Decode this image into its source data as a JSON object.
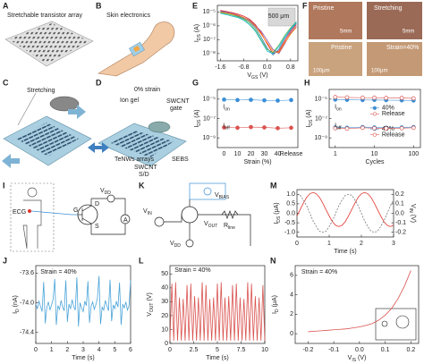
{
  "panels": {
    "A": {
      "letter": "A",
      "title": "Stretchable transistor array"
    },
    "B": {
      "letter": "B",
      "title": "Skin electronics"
    },
    "C": {
      "letter": "C",
      "title": "Stretching"
    },
    "D": {
      "letter": "D",
      "strain": "0% strain",
      "ion_gel": "Ion gel",
      "swcnt_gate": {
        "top": "SWCNT",
        "bottom": "gate"
      },
      "tenws": "TeNWs arrays",
      "swcnt_sd": {
        "top": "SWCNT",
        "bottom": "S/D"
      },
      "sebs": "SEBS"
    },
    "F": {
      "letter": "F",
      "pristine_top": "Pristine",
      "stretching": "Stretching",
      "scale_1": "5mm",
      "scale_2": "5mm",
      "pristine_bottom": "Pristine",
      "strain": "Strain=40%",
      "scale_3": "100μm",
      "scale_4": "100μm"
    },
    "I": {
      "letter": "I",
      "ecg": "ECG",
      "gate": "G",
      "drain": "D",
      "source": "S",
      "vdd": [
        "V",
        "DD"
      ],
      "ammeter": "A"
    },
    "K": {
      "letter": "K",
      "vbias": [
        "V",
        "BIAS"
      ],
      "vin": [
        "V",
        "IN"
      ],
      "vout": [
        "V",
        "OUT"
      ],
      "rline": [
        "R",
        "line"
      ],
      "vdd": [
        "V",
        "DD"
      ]
    }
  },
  "chart_data": [
    {
      "type": "line",
      "letter": "E",
      "ylog": true,
      "x": [
        -1.6,
        -1.4,
        -1.2,
        -1.0,
        -0.8,
        -0.6,
        -0.4,
        -0.2,
        0,
        0.2,
        0.4,
        0.6,
        0.8,
        1.0
      ],
      "xlim": [
        -1.7,
        1.05
      ],
      "xticks": [
        -1.6,
        -0.8,
        {
          "value": 0,
          "label": "0.0"
        },
        0.8
      ],
      "ylim": [
        3e-09,
        3e-05
      ],
      "yticks": [
        {
          "value": 1e-05,
          "label": "10⁻⁵"
        },
        {
          "value": 1e-06,
          "label": "10⁻⁶"
        },
        {
          "value": 1e-07,
          "label": "10⁻⁷"
        },
        {
          "value": 1e-08,
          "label": "10⁻⁸"
        }
      ],
      "xlabel": [
        "V",
        "GS",
        " (V)"
      ],
      "ylabel": [
        "I",
        "DS",
        " (A)"
      ],
      "annotations": [
        "500 μm"
      ],
      "series": [
        {
          "color": "#e41a1c",
          "values": [
            1.3e-05,
            1.1e-05,
            9e-06,
            7e-06,
            5e-06,
            3e-06,
            1.2e-06,
            3e-07,
            5e-08,
            1e-08,
            1.5e-08,
            8e-08,
            4e-07,
            1.2e-06
          ]
        },
        {
          "color": "#377eb8",
          "values": [
            1.1e-05,
            9e-06,
            7e-06,
            5e-06,
            3.5e-06,
            2e-06,
            7e-07,
            1.5e-07,
            2.5e-08,
            8e-09,
            2e-08,
            1.2e-07,
            5e-07,
            1.5e-06
          ]
        },
        {
          "color": "#4daf4a",
          "values": [
            9e-06,
            7.5e-06,
            6e-06,
            4.5e-06,
            3e-06,
            1.5e-06,
            5e-07,
            1e-07,
            2e-08,
            1.2e-08,
            4e-08,
            2e-07,
            7e-07,
            2e-06
          ]
        },
        {
          "color": "#984ea3",
          "values": [
            1.2e-05,
            1e-05,
            8e-06,
            6e-06,
            4e-06,
            2.5e-06,
            1e-06,
            4e-07,
            9e-08,
            2e-08,
            1e-08,
            5e-08,
            3e-07,
            9e-07
          ]
        },
        {
          "color": "#ff7f00",
          "values": [
            1e-05,
            8.5e-06,
            7e-06,
            5.5e-06,
            4e-06,
            2.2e-06,
            9e-07,
            2.5e-07,
            6e-08,
            1.5e-08,
            1.2e-08,
            6e-08,
            2.5e-07,
            8e-07
          ]
        },
        {
          "color": "#17becf",
          "values": [
            8e-06,
            6.5e-06,
            5e-06,
            4e-06,
            2.5e-06,
            1.2e-06,
            4e-07,
            8e-08,
            1.5e-08,
            1e-08,
            3e-08,
            1.5e-07,
            6e-07,
            1.8e-06
          ]
        }
      ]
    },
    {
      "type": "line",
      "letter": "G",
      "ylog": true,
      "categories": [
        "0",
        "10",
        "20",
        "30",
        "40",
        "Release"
      ],
      "ylim": [
        1e-10,
        0.0001
      ],
      "yticks": [
        {
          "value": 1e-05,
          "label": "10⁻⁵"
        },
        {
          "value": 1e-07,
          "label": "10⁻⁷"
        },
        {
          "value": 1e-09,
          "label": "10⁻⁹"
        }
      ],
      "xlabel": "Strain (%)",
      "ylabel": [
        "I",
        "DS",
        " (A)"
      ],
      "annotations": [
        [
          "I",
          "on"
        ],
        [
          "I",
          "off"
        ]
      ],
      "series": [
        {
          "color": "#3b8fd6",
          "marker": "circle",
          "values": [
            9e-06,
            8e-06,
            8.5e-06,
            7.5e-06,
            7e-06,
            8e-06
          ]
        },
        {
          "color": "#d9534f",
          "marker": "circle",
          "values": [
            1.2e-08,
            1.1e-08,
            1.3e-08,
            1.2e-08,
            1e-08,
            1.1e-08
          ]
        }
      ]
    },
    {
      "type": "line",
      "letter": "H",
      "ylog": true,
      "xlog": true,
      "x": [
        1,
        2,
        5,
        10,
        20,
        50,
        100
      ],
      "xlim": [
        0.7,
        150
      ],
      "xticks": [
        1,
        10,
        100
      ],
      "ylim": [
        1e-10,
        0.0001
      ],
      "yticks": [
        {
          "value": 1e-05,
          "label": "10⁻⁵"
        },
        {
          "value": 1e-07,
          "label": "10⁻⁷"
        },
        {
          "value": 1e-09,
          "label": "10⁻⁹"
        }
      ],
      "xlabel": "Cycles",
      "ylabel": [
        "I",
        "DS",
        " (A)"
      ],
      "annotations": [
        [
          "I",
          "on"
        ],
        [
          "I",
          "off"
        ]
      ],
      "series": [
        {
          "name": "40%",
          "color": "#3b8fd6",
          "marker": "circle",
          "values": [
            9e-06,
            8.5e-06,
            8e-06,
            8.2e-06,
            7.8e-06,
            7.5e-06,
            7.2e-06
          ]
        },
        {
          "name": "Release",
          "color": "#d9534f",
          "marker": "ring",
          "values": [
            1.6e-05,
            1.5e-05,
            1.4e-05,
            1.4e-05,
            1.3e-05,
            1.3e-05,
            1.2e-05
          ]
        },
        {
          "name": "40%",
          "color": "#3b8fd6",
          "marker": "circle",
          "values": [
            1.2e-08,
            1.1e-08,
            1.3e-08,
            1.2e-08,
            1.1e-08,
            1.2e-08,
            1.3e-08
          ]
        },
        {
          "name": "Release",
          "color": "#d9534f",
          "marker": "ring",
          "values": [
            1e-08,
            9e-09,
            1.1e-08,
            1e-08,
            9.5e-09,
            1e-08,
            1.1e-08
          ]
        }
      ]
    },
    {
      "type": "line",
      "letter": "M",
      "x": [
        0,
        0.1,
        0.2,
        0.3,
        0.4,
        0.5,
        0.6,
        0.7,
        0.8,
        0.9,
        1.0,
        1.1,
        1.2,
        1.3,
        1.4,
        1.5,
        1.6,
        1.7,
        1.8,
        1.9,
        2.0,
        2.1,
        2.2,
        2.3,
        2.4,
        2.5,
        2.6,
        2.7,
        2.8,
        2.9,
        3.0
      ],
      "xlim": [
        0,
        3
      ],
      "xticks": [
        0,
        1,
        2,
        3
      ],
      "ylim": [
        -1.25,
        1.25
      ],
      "yticks": [
        {
          "value": 1,
          "label": "1.0"
        },
        0.5,
        {
          "value": 0,
          "label": "0.0"
        },
        -0.5,
        {
          "value": -1,
          "label": "-1.0"
        }
      ],
      "y2lim": [
        -0.25,
        0.25
      ],
      "y2ticks": [
        0.2,
        0.1,
        {
          "value": 0,
          "label": "0.0"
        },
        -0.1,
        -0.2
      ],
      "xlabel": "Time (s)",
      "ylabel": [
        "I",
        "DS",
        " (μA)"
      ],
      "y2label": [
        "V",
        "IN",
        " (V)"
      ],
      "series": [
        {
          "color": "#e0322b",
          "values": [
            -0.14,
            0.2,
            0.54,
            0.84,
            1.03,
            1.1,
            1.03,
            0.84,
            0.54,
            0.2,
            -0.14,
            -0.44,
            -0.63,
            -0.7,
            -0.63,
            -0.44,
            -0.14,
            0.2,
            0.54,
            0.84,
            1.03,
            1.1,
            1.03,
            0.84,
            0.54,
            0.2,
            -0.14,
            -0.44,
            -0.63,
            -0.7,
            -0.63
          ]
        },
        {
          "color": "#777777",
          "dash": true,
          "axis": "y2",
          "values": [
            0.2,
            0.19,
            0.14,
            0.08,
            0,
            -0.08,
            -0.14,
            -0.19,
            -0.2,
            -0.19,
            -0.14,
            -0.08,
            0,
            0.08,
            0.14,
            0.19,
            0.2,
            0.19,
            0.14,
            0.08,
            0,
            -0.08,
            -0.14,
            -0.19,
            -0.2,
            -0.19,
            -0.14,
            -0.08,
            0,
            0.08,
            0.14
          ]
        }
      ]
    },
    {
      "type": "line",
      "letter": "J",
      "x": [
        0,
        0.1,
        0.2,
        0.3,
        0.4,
        0.5,
        0.6,
        0.7,
        0.8,
        0.9,
        1,
        1.1,
        1.2,
        1.3,
        1.4,
        1.5,
        1.6,
        1.7,
        1.8,
        1.9,
        2,
        2.1,
        2.2,
        2.3,
        2.4,
        2.5,
        2.6,
        2.7,
        2.8,
        2.9,
        3,
        3.1,
        3.2,
        3.3,
        3.4,
        3.5,
        3.6,
        3.7,
        3.8,
        3.9,
        4,
        4.1,
        4.2,
        4.3,
        4.4,
        4.5,
        4.6,
        4.7,
        4.8,
        4.9,
        5,
        5.1,
        5.2,
        5.3,
        5.4,
        5.5,
        5.6,
        5.7,
        5.8,
        5.9,
        6
      ],
      "xlim": [
        0,
        6
      ],
      "xticks": [
        0,
        1,
        2,
        3,
        4,
        5,
        6
      ],
      "ylim": [
        -74.55,
        -73.5
      ],
      "yticks": [
        -73.6,
        {
          "value": -74,
          "label": "-74.0"
        },
        -74.4
      ],
      "xlabel": "Time (s)",
      "ylabel": [
        "I",
        "D",
        " (nA)"
      ],
      "annotations": [
        "Strain = 40%"
      ],
      "series": [
        {
          "color": "#4aa3d8",
          "values": [
            -74.02,
            -74.08,
            -73.98,
            -74.05,
            -74.12,
            -73.72,
            -74.28,
            -74.06,
            -73.99,
            -74.1,
            -74.03,
            -73.95,
            -73.68,
            -74.3,
            -74.04,
            -74.09,
            -73.97,
            -74.06,
            -74.11,
            -73.7,
            -74.26,
            -74.02,
            -74.08,
            -73.96,
            -74.05,
            -74.1,
            -73.66,
            -74.32,
            -74.0,
            -74.07,
            -74.12,
            -73.98,
            -74.04,
            -73.71,
            -74.27,
            -74.05,
            -73.99,
            -74.09,
            -74.03,
            -73.94,
            -73.64,
            -74.29,
            -74.06,
            -74.1,
            -73.97,
            -74.04,
            -74.11,
            -73.69,
            -74.25,
            -74.03,
            -74.08,
            -73.98,
            -74.06,
            -73.73,
            -74.3,
            -74.02,
            -74.07,
            -73.99,
            -74.1,
            -74.04,
            -73.7
          ]
        }
      ]
    },
    {
      "type": "line",
      "letter": "L",
      "x": [
        0,
        0.2,
        0.4,
        0.6,
        0.8,
        1,
        1.2,
        1.4,
        1.6,
        1.8,
        2,
        2.2,
        2.4,
        2.6,
        2.8,
        3,
        3.2,
        3.4,
        3.6,
        3.8,
        4,
        4.2,
        4.4,
        4.6,
        4.8,
        5,
        5.2,
        5.4,
        5.6,
        5.8,
        6,
        6.2,
        6.4,
        6.6,
        6.8,
        7,
        7.2,
        7.4,
        7.6,
        7.8,
        8,
        8.2,
        8.4,
        8.6,
        8.8,
        9,
        9.2,
        9.4,
        9.6,
        9.8,
        10
      ],
      "xlim": [
        0,
        10
      ],
      "xticks": [
        0,
        2.5,
        5,
        7.5,
        10
      ],
      "ylim": [
        0,
        56
      ],
      "yticks": [
        0,
        10,
        20,
        30,
        40,
        50
      ],
      "xlabel": "Time (s)",
      "ylabel": [
        "V",
        "OUT",
        " (V)"
      ],
      "annotations": [
        "Strain = 40%"
      ],
      "series": [
        {
          "color": "#d9534f",
          "values": [
            2,
            43,
            2,
            44,
            2,
            33,
            2,
            32,
            2,
            42,
            2,
            43,
            2,
            34,
            2,
            33,
            2,
            44,
            2,
            42,
            2,
            32,
            2,
            33,
            2,
            43,
            2,
            44,
            2,
            33,
            2,
            34,
            2,
            42,
            2,
            43,
            2,
            33,
            2,
            32,
            2,
            44,
            2,
            43,
            2,
            34,
            2,
            33,
            2,
            42,
            2
          ]
        }
      ]
    },
    {
      "type": "line",
      "letter": "N",
      "x": [
        -0.2,
        -0.175,
        -0.15,
        -0.125,
        -0.1,
        -0.075,
        -0.05,
        -0.025,
        0,
        0.025,
        0.05,
        0.075,
        0.1,
        0.125,
        0.15,
        0.175,
        0.2
      ],
      "xlim": [
        -0.25,
        0.23
      ],
      "xticks": [
        -0.2,
        -0.1,
        {
          "value": 0,
          "label": "0.0"
        },
        0.1,
        0.2
      ],
      "ylim": [
        -1,
        7
      ],
      "yticks": [
        0,
        2,
        4,
        6
      ],
      "xlabel": [
        "V",
        "IS",
        " (V)"
      ],
      "ylabel": [
        "I",
        "D",
        " (μA)"
      ],
      "annotations": [
        "Strain = 40%"
      ],
      "series": [
        {
          "color": "#d9534f",
          "values": [
            0.2,
            0.25,
            0.3,
            0.35,
            0.4,
            0.45,
            0.5,
            0.6,
            0.7,
            0.85,
            1.05,
            1.4,
            1.9,
            2.6,
            3.6,
            4.9,
            6.5
          ]
        }
      ]
    }
  ]
}
